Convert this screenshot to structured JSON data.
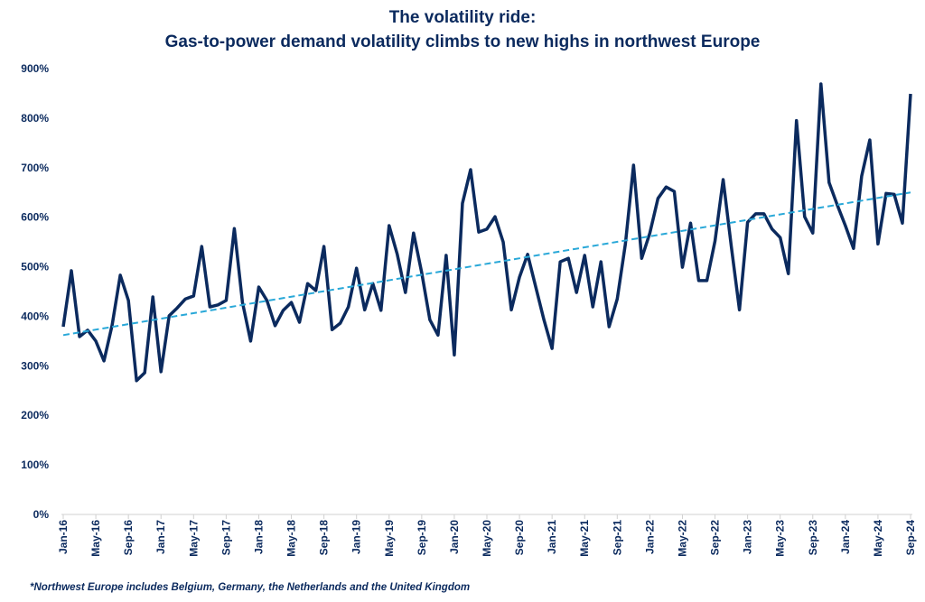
{
  "chart_data": {
    "type": "line",
    "title": "The volatility ride:",
    "subtitle": "Gas-to-power demand volatility climbs to new highs in northwest Europe",
    "xlabel": "",
    "ylabel": "",
    "ylim": [
      0,
      900
    ],
    "yticks": [
      "0%",
      "100%",
      "200%",
      "300%",
      "400%",
      "500%",
      "600%",
      "700%",
      "800%",
      "900%"
    ],
    "start_month": "Jan-16",
    "xtick_labels": [
      "Jan-16",
      "May-16",
      "Sep-16",
      "Jan-17",
      "May-17",
      "Sep-17",
      "Jan-18",
      "May-18",
      "Sep-18",
      "Jan-19",
      "May-19",
      "Sep-19",
      "Jan-20",
      "May-20",
      "Sep-20",
      "Jan-21",
      "May-21",
      "Sep-21",
      "Jan-22",
      "May-22",
      "Sep-22",
      "Jan-23",
      "May-23",
      "Sep-23",
      "Jan-24",
      "May-24",
      "Sep-24"
    ],
    "grid": false,
    "series": [
      {
        "color": "#0b2a5e",
        "style": "solid",
        "values": [
          379,
          492,
          359,
          372,
          350,
          310,
          382,
          483,
          432,
          270,
          286,
          439,
          288,
          401,
          417,
          435,
          441,
          541,
          419,
          423,
          432,
          577,
          428,
          350,
          459,
          432,
          381,
          412,
          428,
          388,
          466,
          452,
          541,
          373,
          386,
          419,
          497,
          413,
          466,
          412,
          583,
          525,
          448,
          568,
          488,
          393,
          362,
          523,
          322,
          628,
          696,
          570,
          576,
          601,
          550,
          413,
          479,
          525,
          459,
          393,
          335,
          510,
          517,
          448,
          523,
          419,
          510,
          379,
          435,
          546,
          705,
          517,
          568,
          638,
          661,
          652,
          499,
          588,
          472,
          472,
          552,
          676,
          541,
          413,
          590,
          607,
          607,
          576,
          559,
          486,
          795,
          601,
          568,
          869,
          670,
          625,
          583,
          537,
          683,
          756,
          546,
          648,
          646,
          588,
          849
        ]
      },
      {
        "color": "#29a8d8",
        "style": "dashed",
        "type": "linear-trend",
        "values": [
          362,
          650
        ]
      }
    ],
    "footnote": "*Northwest Europe includes Belgium, Germany, the Netherlands and the United Kingdom"
  }
}
